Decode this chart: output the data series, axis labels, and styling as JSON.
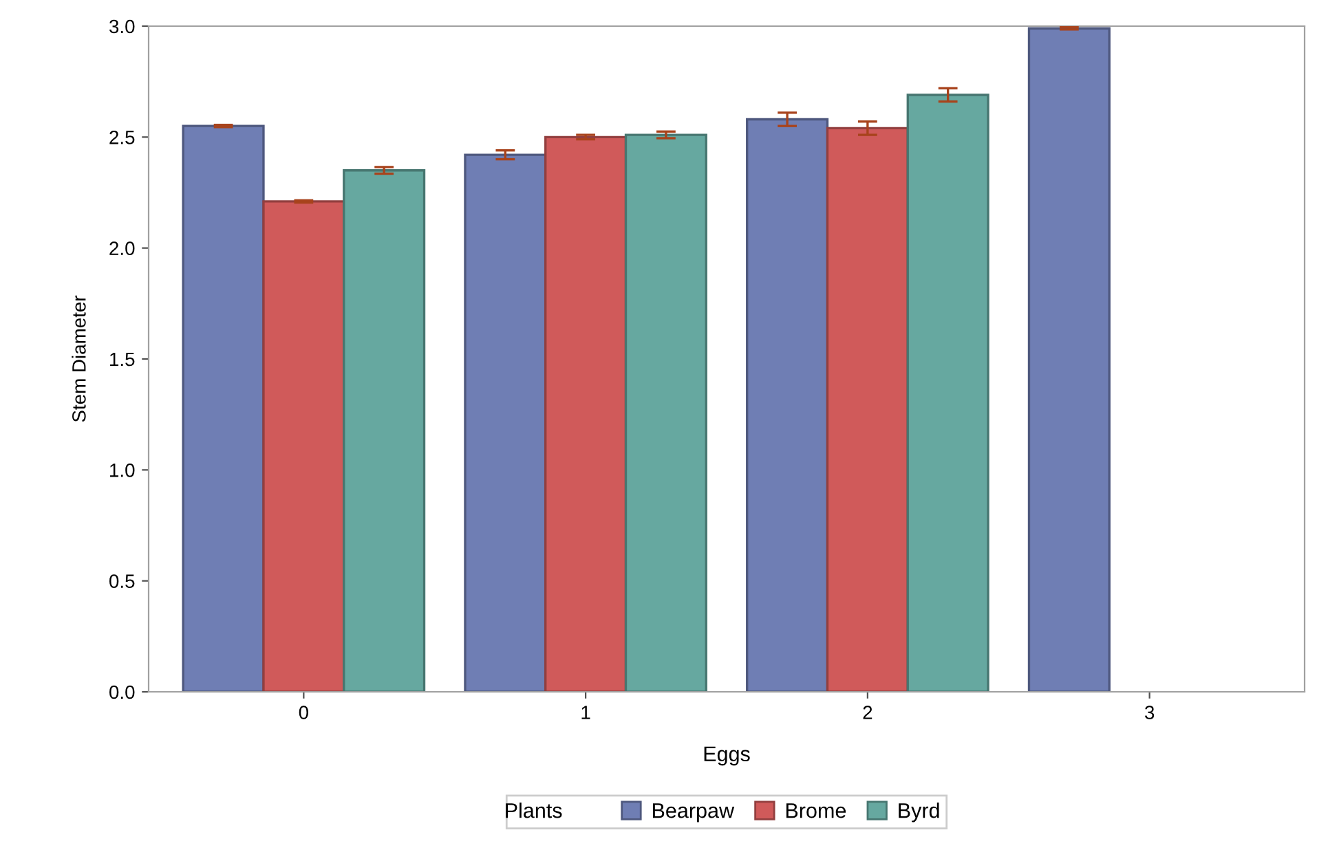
{
  "chart_data": {
    "type": "bar",
    "xlabel": "Eggs",
    "ylabel": "Stem Diameter",
    "legend_title": "Plants",
    "categories": [
      "0",
      "1",
      "2",
      "3"
    ],
    "series": [
      {
        "name": "Bearpaw",
        "color": "#6f7eb4",
        "values": [
          2.55,
          2.42,
          2.58,
          2.99
        ],
        "errors": [
          0.005,
          0.02,
          0.03,
          0.005
        ]
      },
      {
        "name": "Brome",
        "color": "#d05a5a",
        "values": [
          2.21,
          2.5,
          2.54,
          null
        ],
        "errors": [
          0.005,
          0.01,
          0.03,
          null
        ]
      },
      {
        "name": "Byrd",
        "color": "#66a8a0",
        "values": [
          2.35,
          2.51,
          2.69,
          null
        ],
        "errors": [
          0.015,
          0.015,
          0.03,
          null
        ]
      }
    ],
    "ylim": [
      0,
      3.0
    ],
    "yticks": [
      {
        "value": 0,
        "label": "0.0"
      },
      {
        "value": 0.5,
        "label": "0.5"
      },
      {
        "value": 1,
        "label": "1.0"
      },
      {
        "value": 1.5,
        "label": "1.5"
      },
      {
        "value": 2,
        "label": "2.0"
      },
      {
        "value": 2.5,
        "label": "2.5"
      },
      {
        "value": 3,
        "label": "3.0"
      }
    ],
    "grid": false,
    "legend": "bottom"
  }
}
